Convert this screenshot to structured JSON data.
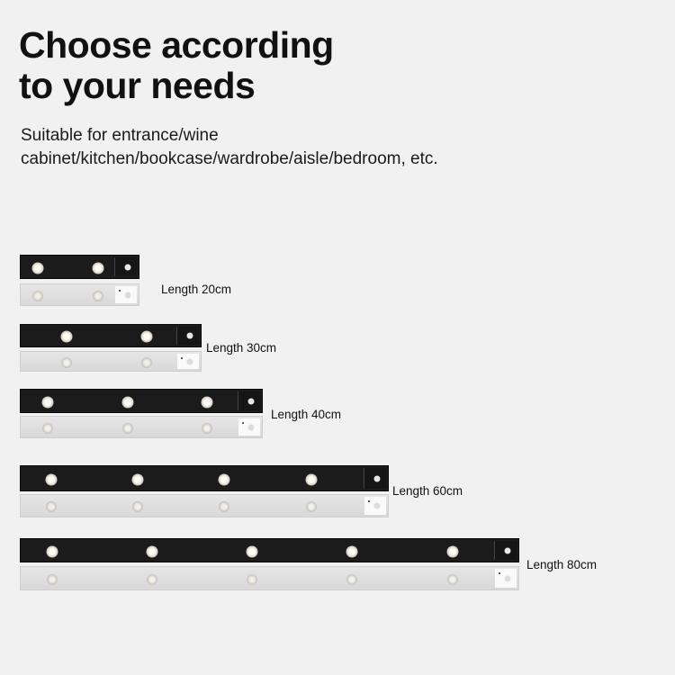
{
  "heading": {
    "title_line1": "Choose according",
    "title_line2": "to your needs",
    "subtitle_line1": "Suitable for entrance/wine",
    "subtitle_line2": "cabinet/kitchen/bookcase/wardrobe/aisle/bedroom, etc."
  },
  "products": [
    {
      "label": "Length 20cm",
      "led_count": 2
    },
    {
      "label": "Length 30cm",
      "led_count": 2
    },
    {
      "label": "Length 40cm",
      "led_count": 3
    },
    {
      "label": "Length 60cm",
      "led_count": 4
    },
    {
      "label": "Length 80cm",
      "led_count": 5
    }
  ],
  "colors": {
    "background": "#f1f1f1",
    "black_bar": "#1b1b1b",
    "white_bar": "#dedede"
  }
}
